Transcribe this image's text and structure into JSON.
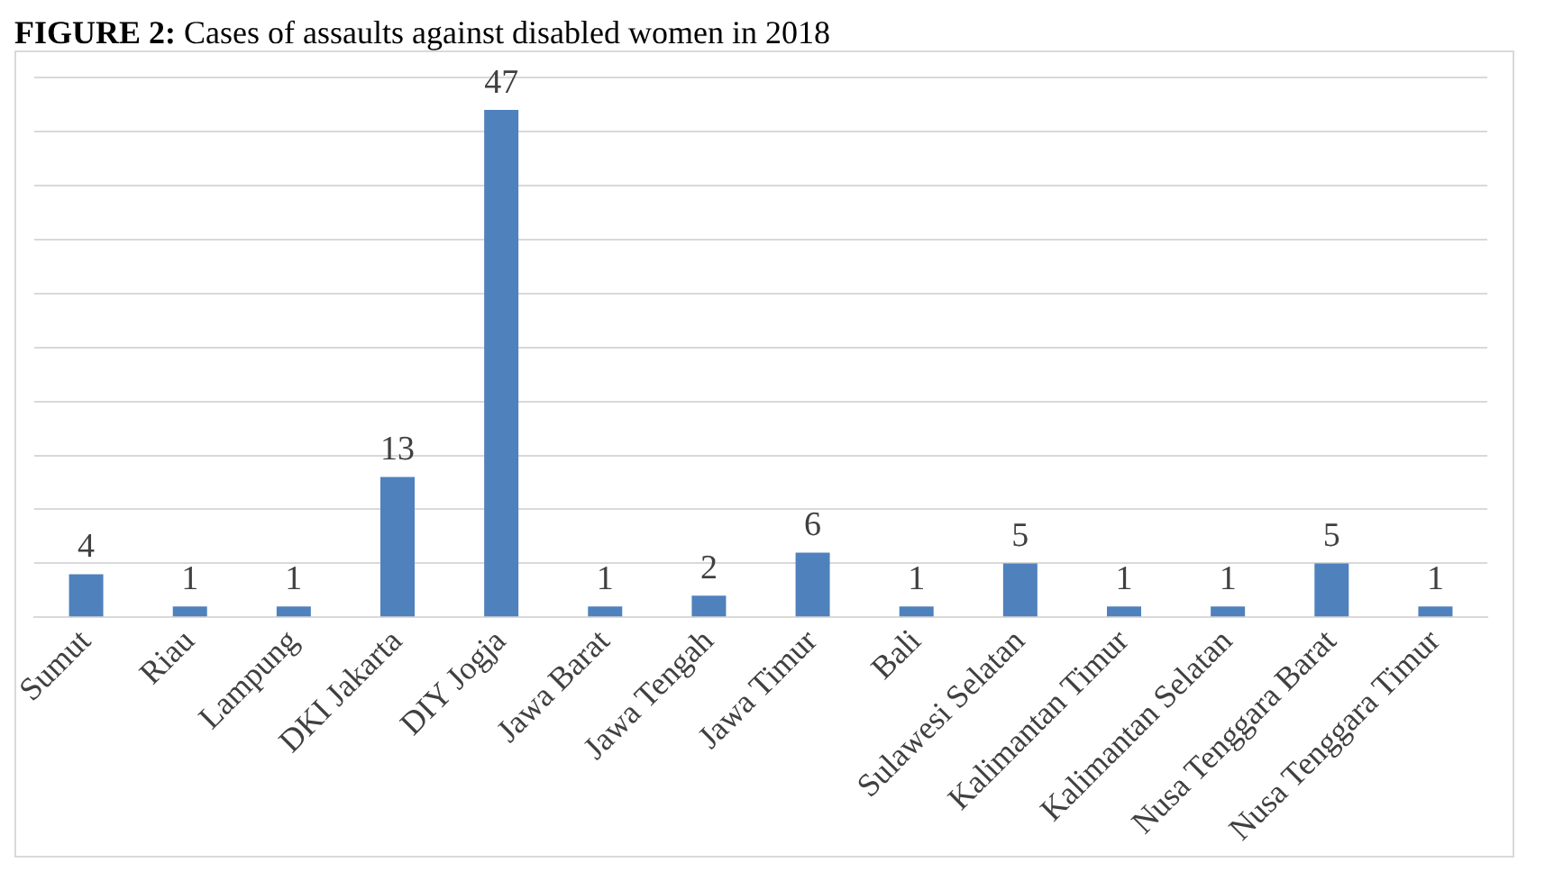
{
  "chart_data": {
    "type": "bar",
    "title": "FIGURE 2: Cases of assaults against disabled women in 2018",
    "categories": [
      "Sumut",
      "Riau",
      "Lampung",
      "DKI Jakarta",
      "DIY Jogja",
      "Jawa Barat",
      "Jawa Tengah",
      "Jawa Timur",
      "Bali",
      "Sulawesi Selatan",
      "Kalimantan Timur",
      "Kalimantan Selatan",
      "Nusa Tenggara Barat",
      "Nusa Tenggara Timur"
    ],
    "values": [
      4,
      1,
      1,
      13,
      47,
      1,
      2,
      6,
      1,
      5,
      1,
      1,
      5,
      1
    ],
    "color": "#4f81bd",
    "data_labels": true,
    "grid": "y",
    "legend": false,
    "tick_labels": "x"
  }
}
